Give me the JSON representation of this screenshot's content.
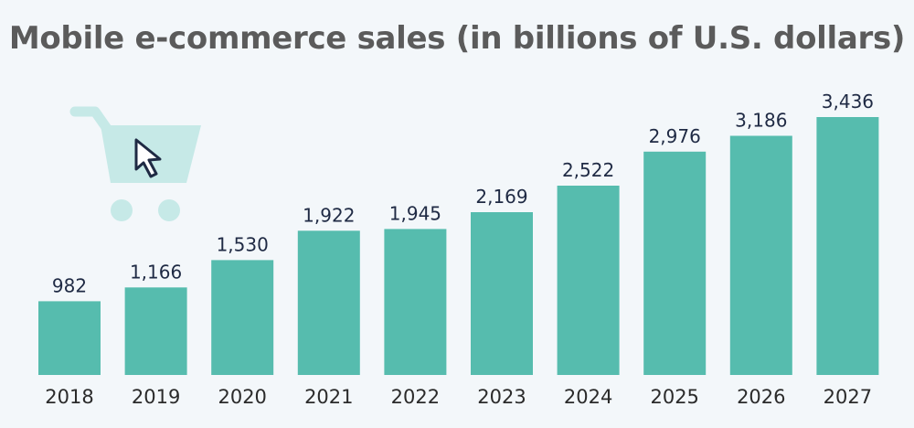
{
  "chart_data": {
    "type": "bar",
    "title": "Mobile e-commerce sales (in billions of U.S. dollars)",
    "xlabel": "",
    "ylabel": "",
    "categories": [
      "2018",
      "2019",
      "2020",
      "2021",
      "2022",
      "2023",
      "2024",
      "2025",
      "2026",
      "2027"
    ],
    "values": [
      982,
      1166,
      1530,
      1922,
      1945,
      2169,
      2522,
      2976,
      3186,
      3436
    ],
    "value_labels": [
      "982",
      "1,166",
      "1,530",
      "1,922",
      "1,945",
      "2,169",
      "2,522",
      "2,976",
      "3,186",
      "3,436"
    ],
    "ylim": [
      0,
      3436
    ],
    "grid": false,
    "legend": "none",
    "bar_color": "#56bcae",
    "decoration": "shopping-cart-with-cursor"
  }
}
